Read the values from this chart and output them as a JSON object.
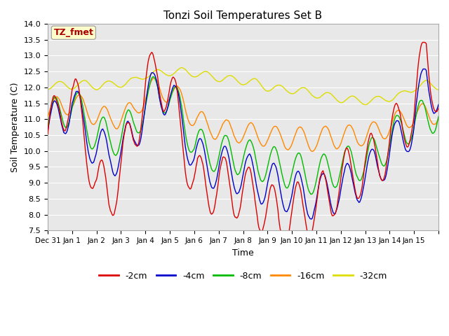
{
  "title": "Tonzi Soil Temperatures Set B",
  "xlabel": "Time",
  "ylabel": "Soil Temperature (C)",
  "ylim": [
    7.5,
    14.0
  ],
  "xlim": [
    0,
    16
  ],
  "annotation_label": "TZ_fmet",
  "annotation_color": "#aa0000",
  "annotation_bg": "#ffffcc",
  "colors": {
    "-2cm": "#dd0000",
    "-4cm": "#0000cc",
    "-8cm": "#00bb00",
    "-16cm": "#ff8800",
    "-32cm": "#dddd00"
  },
  "legend_labels": [
    "-2cm",
    "-4cm",
    "-8cm",
    "-16cm",
    "-32cm"
  ],
  "plot_bg": "#e8e8e8",
  "fig_bg": "#ffffff",
  "grid_color": "#ffffff",
  "title_fontsize": 11,
  "axis_fontsize": 9,
  "tick_fontsize": 8,
  "legend_fontsize": 9
}
